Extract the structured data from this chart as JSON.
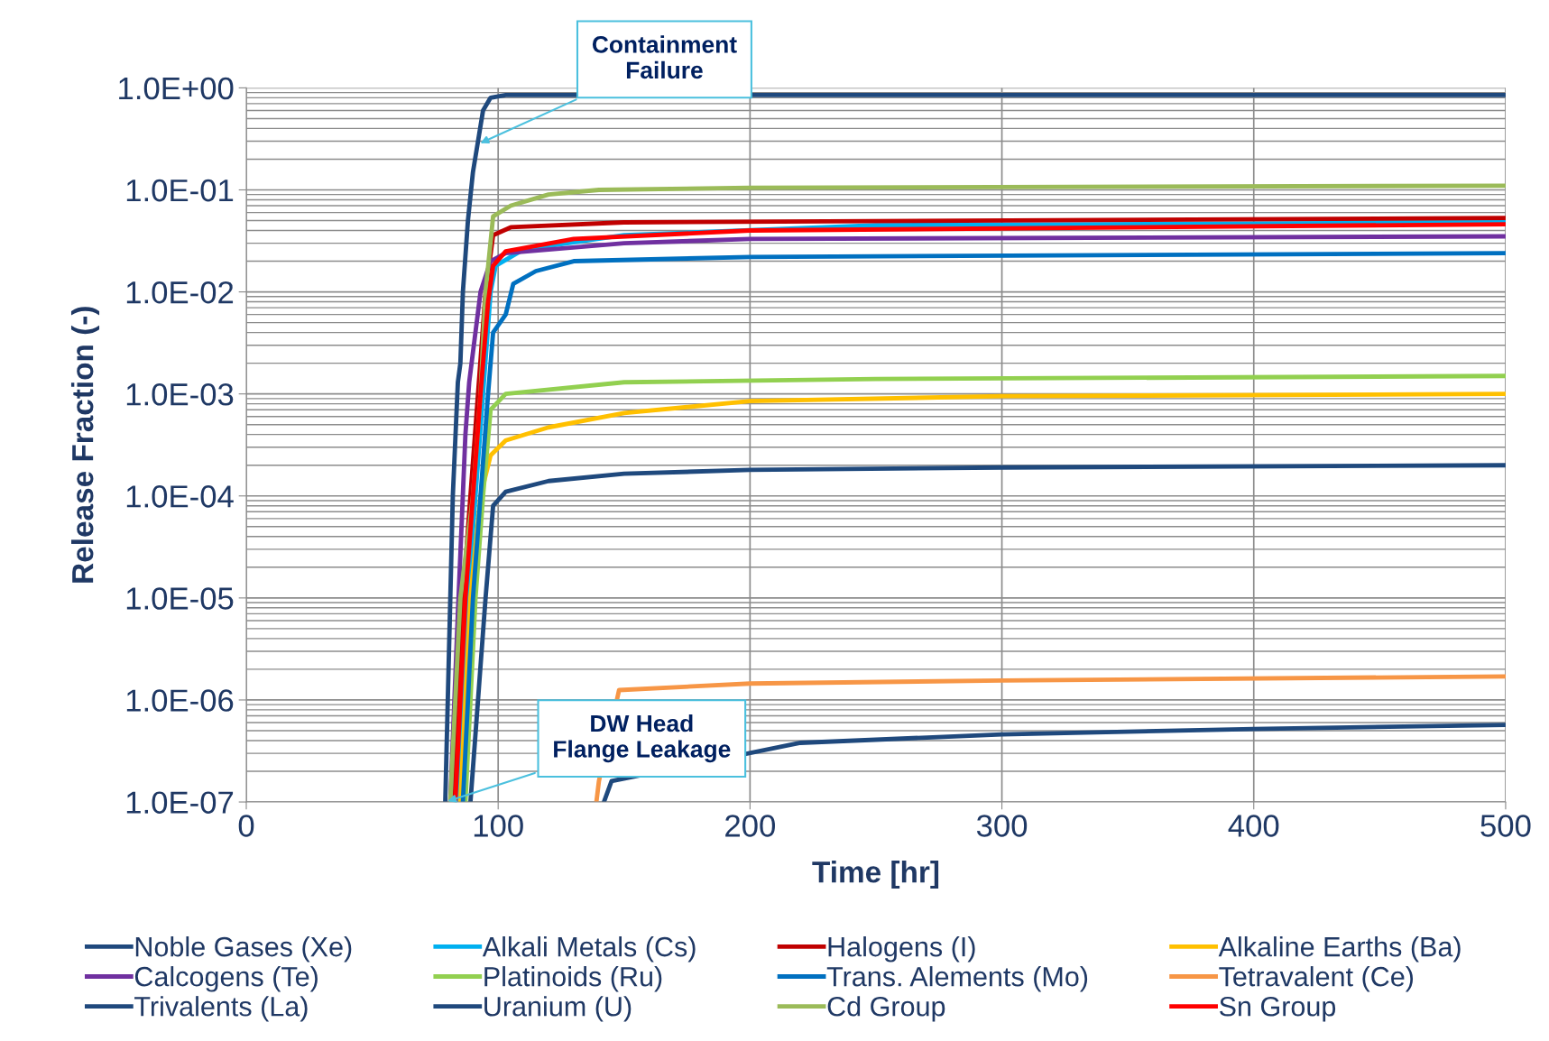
{
  "chart_data": {
    "type": "line",
    "xlabel": "Time [hr]",
    "ylabel": "Release Fraction (-)",
    "log": "y",
    "grid": true,
    "legend": "bottom",
    "line_style": "solid",
    "marker": "none",
    "xlim": [
      0,
      500
    ],
    "xticks": [
      0,
      100,
      200,
      300,
      400,
      500
    ],
    "ylim": [
      1e-07,
      1
    ],
    "yticks": [
      {
        "value": 1e-07,
        "label": "1.0E-07"
      },
      {
        "value": 1e-06,
        "label": "1.0E-06"
      },
      {
        "value": 1e-05,
        "label": "1.0E-05"
      },
      {
        "value": 0.0001,
        "label": "1.0E-04"
      },
      {
        "value": 0.001,
        "label": "1.0E-03"
      },
      {
        "value": 0.01,
        "label": "1.0E-02"
      },
      {
        "value": 0.1,
        "label": "1.0E-01"
      },
      {
        "value": 1,
        "label": "1.0E+00"
      }
    ],
    "annotations": [
      {
        "text": "Containment\nFailure",
        "x": 92,
        "y": 0.28
      },
      {
        "text": "DW Head\nFlange Leakage",
        "x": 79,
        "y": 1e-07
      }
    ],
    "series": [
      {
        "name": "Noble Gases (Xe)",
        "color": "#1f497d",
        "x": [
          79,
          81,
          82,
          84,
          85,
          86,
          88,
          90,
          92,
          94,
          97,
          103,
          500
        ],
        "values": [
          1e-07,
          1e-05,
          0.0001,
          0.0013,
          0.002,
          0.01,
          0.05,
          0.15,
          0.3,
          0.6,
          0.8,
          0.85,
          0.85
        ]
      },
      {
        "name": "Alkali Metals (Cs)",
        "color": "#00b0f0",
        "x": [
          84,
          88,
          91,
          94,
          97,
          99,
          110,
          150,
          250,
          500
        ],
        "values": [
          1e-07,
          1e-05,
          0.0001,
          0.001,
          0.01,
          0.018,
          0.026,
          0.036,
          0.045,
          0.048
        ]
      },
      {
        "name": "Halogens (I)",
        "color": "#c00000",
        "x": [
          82,
          86,
          89,
          92,
          95,
          98,
          105,
          150,
          500
        ],
        "values": [
          1e-07,
          1e-05,
          0.0001,
          0.001,
          0.01,
          0.036,
          0.043,
          0.048,
          0.053
        ]
      },
      {
        "name": "Alkaline Earths (Ba)",
        "color": "#ffc000",
        "x": [
          85,
          89,
          93,
          97,
          103,
          120,
          150,
          200,
          300,
          500
        ],
        "values": [
          1e-07,
          1e-05,
          0.0001,
          0.00025,
          0.00035,
          0.00047,
          0.00065,
          0.00085,
          0.00095,
          0.001
        ]
      },
      {
        "name": "Calcogens (Te)",
        "color": "#7030a0",
        "x": [
          81,
          84,
          87,
          88.5,
          93,
          97,
          103,
          150,
          200,
          500
        ],
        "values": [
          1e-07,
          7e-06,
          0.0004,
          0.0013,
          0.01,
          0.02,
          0.024,
          0.03,
          0.033,
          0.035
        ]
      },
      {
        "name": "Platinoids (Ru)",
        "color": "#92d050",
        "x": [
          87,
          91,
          94,
          97,
          103,
          150,
          250,
          500
        ],
        "values": [
          1e-07,
          1e-05,
          0.0001,
          0.0007,
          0.001,
          0.0013,
          0.0014,
          0.0015
        ]
      },
      {
        "name": "Trans. Alements (Mo)",
        "color": "#0070c0",
        "x": [
          86,
          90,
          93,
          96,
          98,
          103,
          106,
          115,
          130,
          200,
          500
        ],
        "values": [
          1e-07,
          1e-05,
          0.0001,
          0.001,
          0.004,
          0.006,
          0.012,
          0.016,
          0.02,
          0.022,
          0.024
        ]
      },
      {
        "name": "Tetravalent (Ce)",
        "color": "#f79646",
        "x": [
          139,
          140,
          148,
          200,
          300,
          500
        ],
        "values": [
          1e-07,
          1.6e-07,
          1.25e-06,
          1.45e-06,
          1.55e-06,
          1.7e-06
        ]
      },
      {
        "name": "Trivalents (La)",
        "color": "#1f497d",
        "x": [
          89,
          92,
          95,
          98,
          103,
          120,
          150,
          200,
          300,
          500
        ],
        "values": [
          1e-07,
          1e-06,
          1e-05,
          8e-05,
          0.00011,
          0.00014,
          0.000165,
          0.00018,
          0.00019,
          0.0002
        ]
      },
      {
        "name": "Uranium (U)",
        "color": "#1f497d",
        "x": [
          142,
          145,
          220,
          300,
          400,
          500
        ],
        "values": [
          1e-07,
          1.6e-07,
          3.8e-07,
          4.6e-07,
          5.2e-07,
          5.7e-07
        ]
      },
      {
        "name": "Cd Group",
        "color": "#9bbb59",
        "x": [
          81,
          85,
          90,
          93,
          95,
          98,
          105,
          120,
          140,
          200,
          500
        ],
        "values": [
          1e-07,
          1e-05,
          0.0001,
          0.001,
          0.01,
          0.055,
          0.07,
          0.09,
          0.1,
          0.105,
          0.11
        ]
      },
      {
        "name": "Sn Group",
        "color": "#ff0000",
        "x": [
          83,
          87,
          90,
          93,
          96,
          98,
          103,
          130,
          200,
          500
        ],
        "values": [
          1e-07,
          1e-05,
          0.0001,
          0.001,
          0.008,
          0.018,
          0.025,
          0.033,
          0.04,
          0.046
        ]
      }
    ]
  }
}
